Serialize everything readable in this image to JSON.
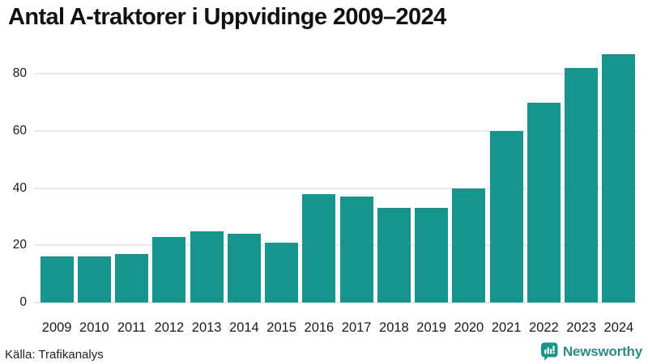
{
  "title": "Antal A-traktorer i Uppvidinge 2009–2024",
  "chart_data": {
    "type": "bar",
    "title": "Antal A-traktorer i Uppvidinge 2009–2024",
    "categories": [
      "2009",
      "2010",
      "2011",
      "2012",
      "2013",
      "2014",
      "2015",
      "2016",
      "2017",
      "2018",
      "2019",
      "2020",
      "2021",
      "2022",
      "2023",
      "2024"
    ],
    "values": [
      16,
      16,
      17,
      23,
      25,
      24,
      21,
      38,
      37,
      33,
      33,
      40,
      60,
      70,
      82,
      87
    ],
    "xlabel": "",
    "ylabel": "",
    "ylim": [
      0,
      88
    ],
    "yticks": [
      0,
      20,
      40,
      60,
      80
    ],
    "grid": true,
    "legend": "none",
    "bar_color": "#17948b"
  },
  "footer": {
    "source_label": "Källa: Trafikanalys",
    "brand_name": "Newsworthy"
  },
  "colors": {
    "bar": "#17948b",
    "title_text": "#111111",
    "tick_text": "#1a1a1a",
    "gridline": "#e9e9ec",
    "brand_teal": "#2e8b83",
    "background": "#ffffff"
  }
}
